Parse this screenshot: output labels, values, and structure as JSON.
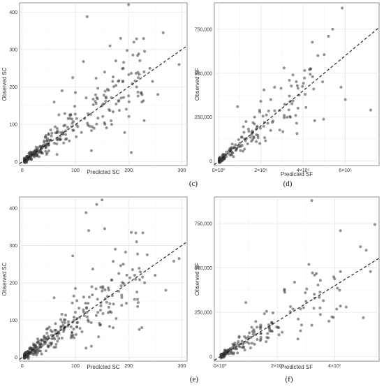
{
  "chart_data": [
    {
      "tag": "(c)",
      "type": "scatter",
      "xlabel": "Predicted SC",
      "ylabel": "Observed SC",
      "xlim": [
        -5,
        310
      ],
      "ylim": [
        -10,
        425
      ],
      "xticks": [
        {
          "v": 0,
          "label": "0"
        },
        {
          "v": 100,
          "label": "100"
        },
        {
          "v": 200,
          "label": "200"
        },
        {
          "v": 300,
          "label": "300"
        }
      ],
      "yticks": [
        {
          "v": 0,
          "label": "0"
        },
        {
          "v": 100,
          "label": "100"
        },
        {
          "v": 200,
          "label": "200"
        },
        {
          "v": 300,
          "label": "300"
        },
        {
          "v": 400,
          "label": "400"
        }
      ],
      "fit_line": [
        [
          -5,
          -5
        ],
        [
          310,
          310
        ]
      ],
      "seed": 11,
      "n_cluster": 300,
      "cluster": {
        "xmin": 4,
        "xmax": 230,
        "noise": 0.28,
        "scale": 30
      },
      "points": [
        [
          200,
          420
        ],
        [
          122,
          388
        ],
        [
          185,
          330
        ],
        [
          210,
          320
        ],
        [
          165,
          310
        ],
        [
          230,
          295
        ],
        [
          265,
          345
        ],
        [
          295,
          260
        ],
        [
          115,
          268
        ],
        [
          155,
          240
        ],
        [
          190,
          250
        ],
        [
          205,
          25
        ],
        [
          130,
          30
        ],
        [
          215,
          200
        ],
        [
          240,
          250
        ],
        [
          245,
          215
        ],
        [
          255,
          180
        ],
        [
          225,
          160
        ],
        [
          170,
          215
        ],
        [
          150,
          150
        ],
        [
          60,
          160
        ],
        [
          100,
          185
        ],
        [
          95,
          225
        ],
        [
          75,
          190
        ]
      ]
    },
    {
      "tag": "(d)",
      "type": "scatter",
      "xlabel": "Predicted SF",
      "ylabel": "Observed SF",
      "xlim": [
        -20000,
        760000
      ],
      "ylim": [
        -25000,
        900000
      ],
      "xticks": [
        {
          "v": 0,
          "label": "0×10⁰"
        },
        {
          "v": 200000,
          "label": "2×10⁵"
        },
        {
          "v": 400000,
          "label": "4×10⁵"
        },
        {
          "v": 600000,
          "label": "6×10⁵"
        }
      ],
      "yticks": [
        {
          "v": 0,
          "label": "0"
        },
        {
          "v": 250000,
          "label": "250,000"
        },
        {
          "v": 500000,
          "label": "500,000"
        },
        {
          "v": 750000,
          "label": "750,000"
        }
      ],
      "fit_line": [
        [
          -20000,
          -20000
        ],
        [
          760000,
          760000
        ]
      ],
      "seed": 23,
      "n_cluster": 180,
      "cluster": {
        "xmin": 3000,
        "xmax": 500000,
        "noise": 0.3,
        "scale": 60000
      },
      "points": [
        [
          585000,
          870000
        ],
        [
          540000,
          750000
        ],
        [
          520000,
          710000
        ],
        [
          500000,
          605000
        ],
        [
          470000,
          600000
        ],
        [
          445000,
          480000
        ],
        [
          580000,
          420000
        ],
        [
          600000,
          350000
        ],
        [
          720000,
          290000
        ],
        [
          450000,
          410000
        ],
        [
          410000,
          380000
        ],
        [
          310000,
          530000
        ],
        [
          265000,
          420000
        ],
        [
          215000,
          405000
        ],
        [
          200000,
          340000
        ],
        [
          130000,
          225000
        ],
        [
          90000,
          310000
        ],
        [
          160000,
          160000
        ],
        [
          340000,
          250000
        ],
        [
          455000,
          230000
        ]
      ]
    },
    {
      "tag": "(e)",
      "type": "scatter",
      "xlabel": "Predicted SC",
      "ylabel": "Observed SC",
      "xlim": [
        -5,
        310
      ],
      "ylim": [
        -10,
        430
      ],
      "xticks": [
        {
          "v": 0,
          "label": "0"
        },
        {
          "v": 100,
          "label": "100"
        },
        {
          "v": 200,
          "label": "200"
        },
        {
          "v": 300,
          "label": "300"
        }
      ],
      "yticks": [
        {
          "v": 0,
          "label": "0"
        },
        {
          "v": 100,
          "label": "100"
        },
        {
          "v": 200,
          "label": "200"
        },
        {
          "v": 300,
          "label": "300"
        },
        {
          "v": 400,
          "label": "400"
        }
      ],
      "fit_line": [
        [
          -5,
          -5
        ],
        [
          310,
          310
        ]
      ],
      "seed": 37,
      "n_cluster": 300,
      "cluster": {
        "xmin": 4,
        "xmax": 230,
        "noise": 0.3,
        "scale": 30
      },
      "points": [
        [
          150,
          422
        ],
        [
          140,
          410
        ],
        [
          120,
          388
        ],
        [
          155,
          345
        ],
        [
          125,
          340
        ],
        [
          205,
          335
        ],
        [
          215,
          310
        ],
        [
          235,
          275
        ],
        [
          95,
          272
        ],
        [
          285,
          258
        ],
        [
          295,
          265
        ],
        [
          220,
          75
        ],
        [
          120,
          25
        ],
        [
          130,
          30
        ],
        [
          175,
          290
        ],
        [
          190,
          250
        ],
        [
          230,
          200
        ],
        [
          250,
          220
        ],
        [
          60,
          160
        ],
        [
          100,
          185
        ],
        [
          270,
          180
        ]
      ]
    },
    {
      "tag": "(f)",
      "type": "scatter",
      "xlabel": "Predicted SF",
      "ylabel": "Observed SF",
      "xlim": [
        -20000,
        555000
      ],
      "ylim": [
        -25000,
        900000
      ],
      "xticks": [
        {
          "v": 0,
          "label": "0×10⁰"
        },
        {
          "v": 200000,
          "label": "2×10⁵"
        },
        {
          "v": 400000,
          "label": "4×10⁵"
        }
      ],
      "yticks": [
        {
          "v": 0,
          "label": "0"
        },
        {
          "v": 250000,
          "label": "250,000"
        },
        {
          "v": 500000,
          "label": "500,000"
        },
        {
          "v": 750000,
          "label": "750,000"
        }
      ],
      "fit_line": [
        [
          -20000,
          -20000
        ],
        [
          555000,
          555000
        ]
      ],
      "seed": 53,
      "n_cluster": 180,
      "cluster": {
        "xmin": 3000,
        "xmax": 420000,
        "noise": 0.3,
        "scale": 55000
      },
      "points": [
        [
          320000,
          880000
        ],
        [
          540000,
          745000
        ],
        [
          420000,
          710000
        ],
        [
          510000,
          600000
        ],
        [
          490000,
          620000
        ],
        [
          525000,
          480000
        ],
        [
          420000,
          480000
        ],
        [
          310000,
          520000
        ],
        [
          330000,
          460000
        ],
        [
          350000,
          430000
        ],
        [
          260000,
          420000
        ],
        [
          225000,
          380000
        ],
        [
          90000,
          305000
        ],
        [
          500000,
          220000
        ],
        [
          440000,
          280000
        ],
        [
          330000,
          330000
        ],
        [
          380000,
          200000
        ],
        [
          170000,
          180000
        ]
      ]
    }
  ]
}
